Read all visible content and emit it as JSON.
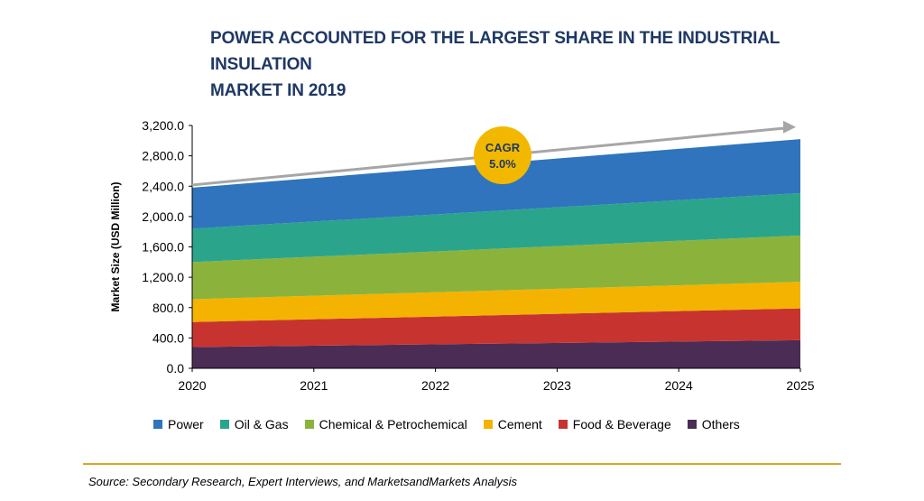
{
  "title_line1": "POWER ACCOUNTED FOR THE LARGEST SHARE IN THE INDUSTRIAL INSULATION",
  "title_line2": "MARKET IN 2019",
  "source": "Source: Secondary Research, Expert Interviews, and MarketsandMarkets Analysis",
  "chart_data": {
    "type": "area",
    "stacked": true,
    "title": "POWER ACCOUNTED FOR THE LARGEST SHARE IN THE INDUSTRIAL INSULATION MARKET IN 2019",
    "xlabel": "",
    "ylabel": "Market Size (USD Million)",
    "x": [
      "2020",
      "2021",
      "2022",
      "2023",
      "2024",
      "2025"
    ],
    "ylim": [
      0,
      3200
    ],
    "yticks": [
      "0.0",
      "400.0",
      "800.0",
      "1,200.0",
      "1,600.0",
      "2,000.0",
      "2,400.0",
      "2,800.0",
      "3,200.0"
    ],
    "grid": false,
    "legend_position": "bottom",
    "series": [
      {
        "name": "Others",
        "color": "#4b2c55",
        "start": 280,
        "end": 370
      },
      {
        "name": "Food & Beverage",
        "color": "#c73430",
        "start": 330,
        "end": 420
      },
      {
        "name": "Cement",
        "color": "#f4b300",
        "start": 300,
        "end": 350
      },
      {
        "name": "Chemical & Petrochemical",
        "color": "#8bb33b",
        "start": 490,
        "end": 610
      },
      {
        "name": "Oil & Gas",
        "color": "#2aa58b",
        "start": 440,
        "end": 560
      },
      {
        "name": "Power",
        "color": "#2f74bd",
        "start": 540,
        "end": 710
      }
    ],
    "legend_order": [
      "Power",
      "Oil & Gas",
      "Chemical & Petrochemical",
      "Cement",
      "Food & Beverage",
      "Others"
    ],
    "annotation": {
      "label_line1": "CAGR",
      "label_line2": "5.0%",
      "color": "#f2b800"
    }
  }
}
